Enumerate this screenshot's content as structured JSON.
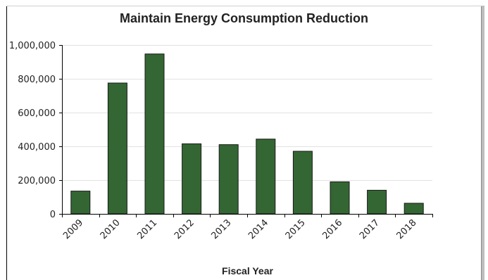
{
  "chart_data": {
    "type": "bar",
    "title": "Maintain Energy Consumption Reduction",
    "xlabel": "Fiscal Year",
    "ylabel": "",
    "categories": [
      "2009",
      "2010",
      "2011",
      "2012",
      "2013",
      "2014",
      "2015",
      "2016",
      "2017",
      "2018"
    ],
    "values": [
      135000,
      775000,
      947000,
      415000,
      410000,
      443000,
      371000,
      190000,
      140000,
      63000
    ],
    "ylim": [
      0,
      1000000
    ],
    "yticks": [
      0,
      200000,
      400000,
      600000,
      800000,
      1000000
    ],
    "ytick_labels": [
      "0",
      "200,000",
      "400,000",
      "600,000",
      "800,000",
      "1,000,000"
    ],
    "grid": true,
    "legend": "none",
    "bar_color": "#336633",
    "bar_edge_color": "#1a1a1a"
  }
}
